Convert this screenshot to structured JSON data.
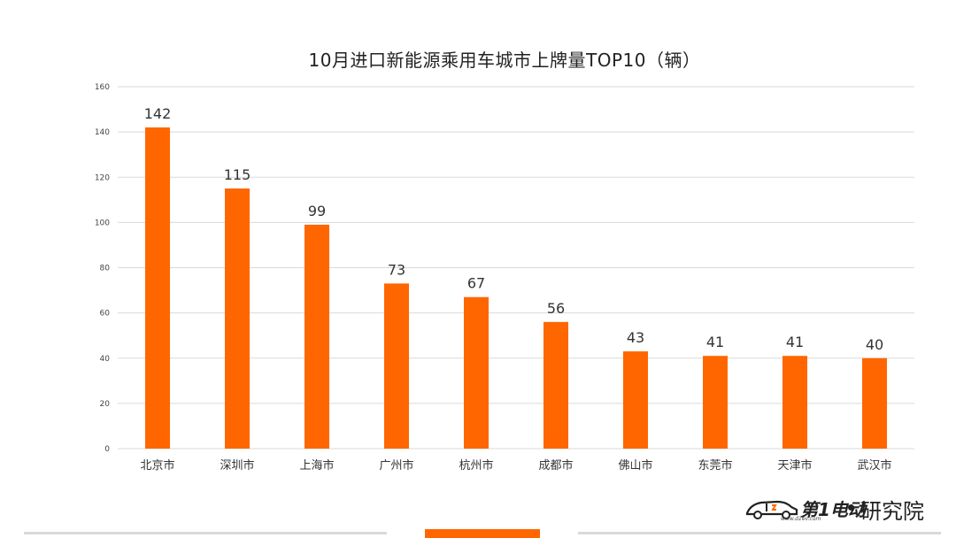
{
  "chart_data": {
    "type": "bar",
    "title": "10月进口新能源乘用车城市上牌量TOP10（辆）",
    "categories": [
      "北京市",
      "深圳市",
      "上海市",
      "广州市",
      "杭州市",
      "成都市",
      "佛山市",
      "东莞市",
      "天津市",
      "武汉市"
    ],
    "values": [
      142,
      115,
      99,
      73,
      67,
      56,
      43,
      41,
      41,
      40
    ],
    "ylim": [
      0,
      160
    ],
    "yticks": [
      0,
      20,
      40,
      60,
      80,
      100,
      120,
      140,
      160
    ],
    "xlabel": "",
    "ylabel": "",
    "grid": true,
    "bar_color": "#ff6600",
    "grid_color": "#d9d9d9"
  },
  "brand": {
    "logo_text": "第1电动",
    "logo_suffix": "研究院",
    "logo_url": "www.d1ev.com",
    "accent_color": "#ff6600"
  }
}
